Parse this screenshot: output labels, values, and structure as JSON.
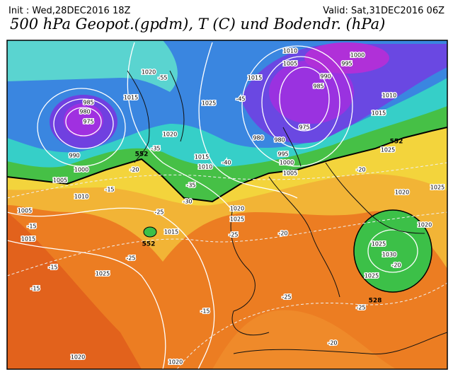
{
  "header": {
    "init": "Init : Wed,28DEC2016 18Z",
    "valid": "Valid: Sat,31DEC2016 06Z",
    "title": "500 hPa Geopot.(gpdm), T (C) und Bodendr. (hPa)"
  },
  "map": {
    "isobar_labels": [
      "985",
      "980",
      "975",
      "990",
      "1000",
      "1005",
      "1010",
      "1015",
      "1005",
      "1020",
      "1015",
      "1025",
      "1020",
      "1015",
      "1010",
      "1015",
      "1010",
      "1005",
      "1000",
      "995",
      "990",
      "985",
      "980",
      "980",
      "975",
      "995",
      "1000",
      "1005",
      "1010",
      "1015",
      "1025",
      "1020",
      "1025",
      "1020",
      "1025",
      "1030",
      "1025",
      "1020",
      "1025",
      "1015",
      "1025",
      "1020",
      "1020"
    ],
    "temperature_labels": [
      "-20",
      "-15",
      "-15",
      "-15",
      "-15",
      "-25",
      "-25",
      "-30",
      "-35",
      "-35",
      "-25",
      "-25",
      "-20",
      "-20",
      "-20",
      "-25",
      "-20",
      "-15",
      "-40",
      "-45",
      "-55"
    ],
    "geopotential_labels": [
      "552",
      "552",
      "552",
      "528"
    ]
  }
}
